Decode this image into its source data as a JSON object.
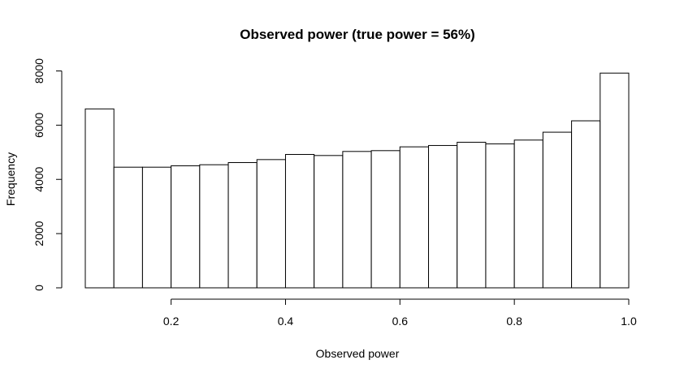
{
  "chart_data": {
    "type": "bar",
    "subtype": "histogram",
    "title": "Observed power (true power = 56%)",
    "xlabel": "Observed power",
    "ylabel": "Frequency",
    "bin_edges": [
      0.05,
      0.1,
      0.15,
      0.2,
      0.25,
      0.3,
      0.35,
      0.4,
      0.45,
      0.5,
      0.55,
      0.6,
      0.65,
      0.7,
      0.75,
      0.8,
      0.85,
      0.9,
      0.95,
      1.0
    ],
    "values": [
      6600,
      4450,
      4450,
      4500,
      4540,
      4620,
      4730,
      4920,
      4880,
      5030,
      5060,
      5200,
      5250,
      5370,
      5310,
      5450,
      5740,
      6160,
      7920
    ],
    "x_ticks": [
      0.2,
      0.4,
      0.6,
      0.8,
      1.0
    ],
    "x_tick_labels": [
      "0.2",
      "0.4",
      "0.6",
      "0.8",
      "1.0"
    ],
    "y_ticks": [
      0,
      2000,
      4000,
      6000,
      8000
    ],
    "y_tick_labels": [
      "0",
      "2000",
      "4000",
      "6000",
      "8000"
    ],
    "xlim": [
      0.05,
      1.0
    ],
    "ylim": [
      0,
      8000
    ],
    "grid": false,
    "legend": "none",
    "bar_fill": "#ffffff",
    "bar_stroke": "#000000"
  }
}
